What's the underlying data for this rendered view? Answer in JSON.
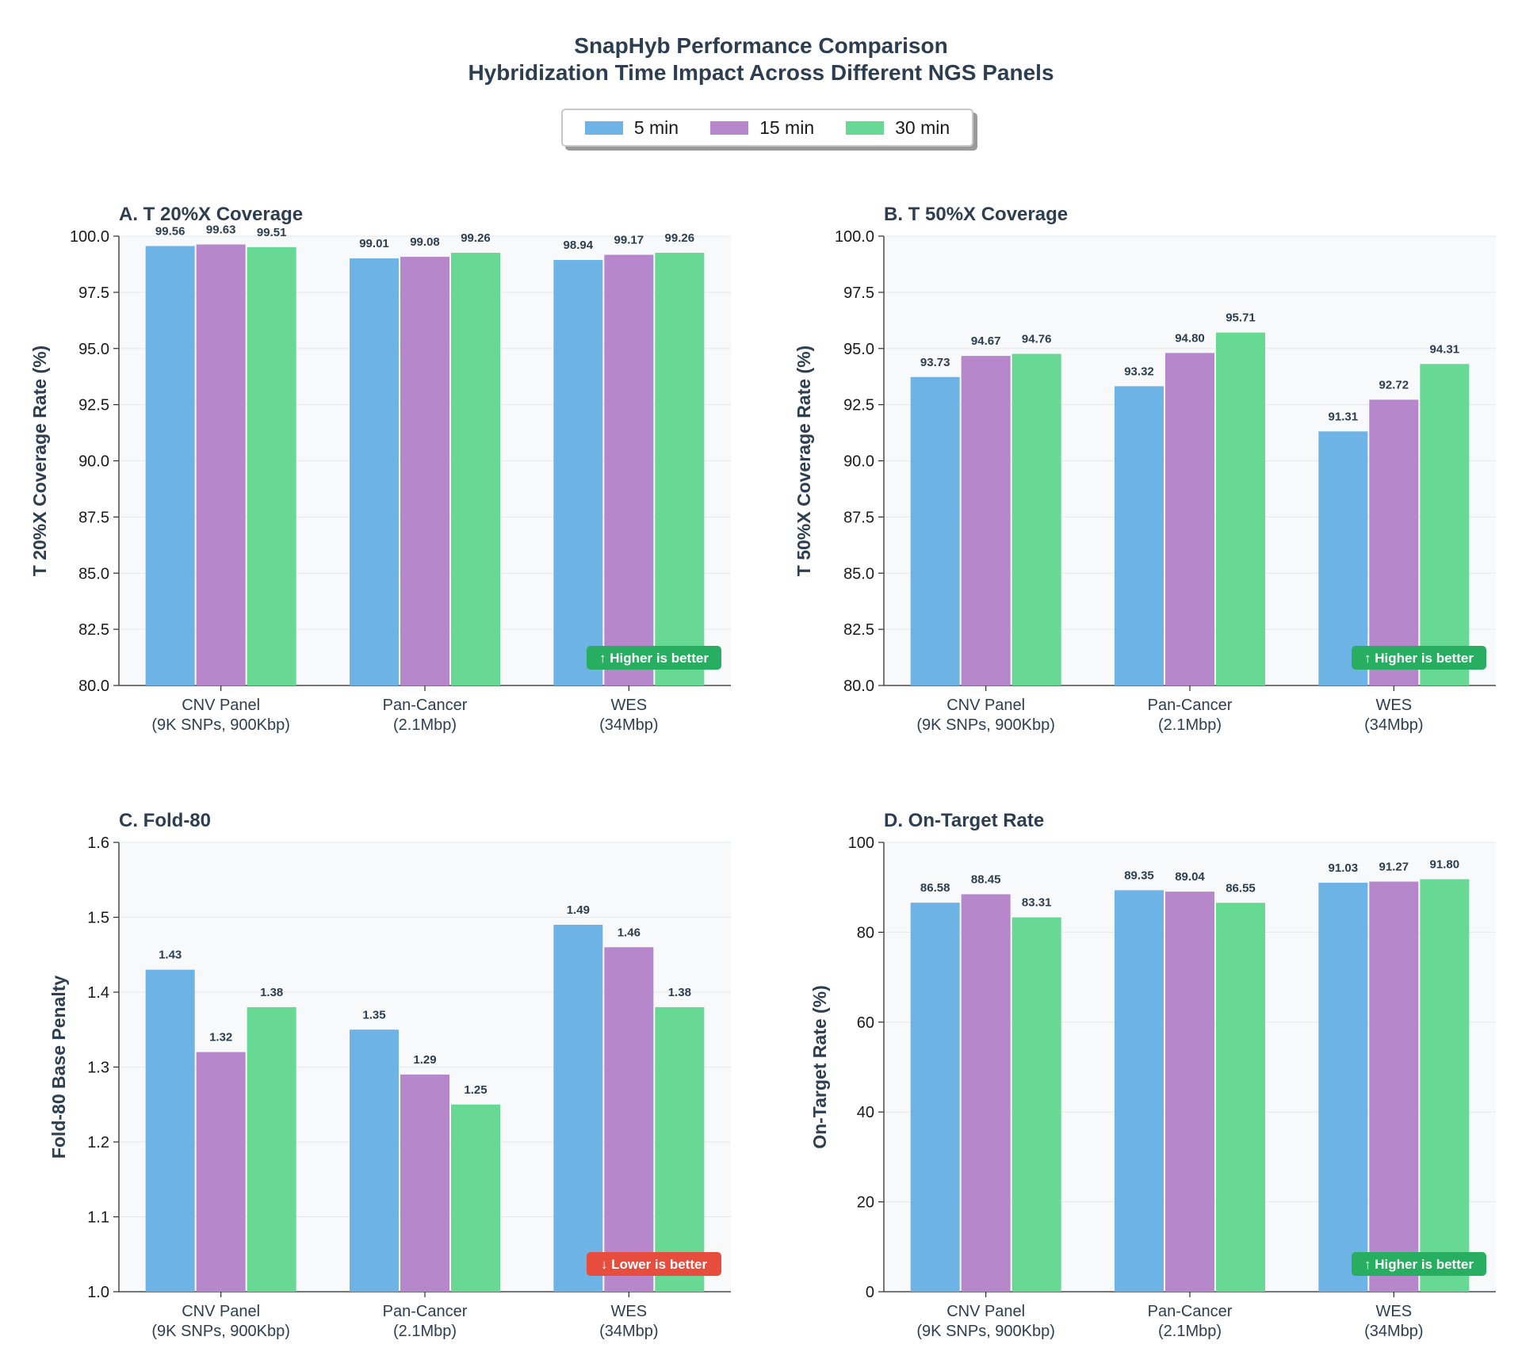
{
  "figure": {
    "title_line1": "SnapHyb Performance Comparison",
    "title_line2": "Hybridization Time Impact Across Different NGS Panels",
    "legend": [
      {
        "label": "5 min",
        "color": "#6db3e6"
      },
      {
        "label": "15 min",
        "color": "#b687cb"
      },
      {
        "label": "30 min",
        "color": "#68d895"
      }
    ],
    "colors": {
      "text": "#2c3e50",
      "better_good": "#27ae60",
      "better_bad": "#e74c3c",
      "panel_bg": "#f8f9fa",
      "grid": "#e6e8ea"
    }
  },
  "chart_data": [
    {
      "type": "bar",
      "title": "A. T 20%X Coverage",
      "ylabel": "T 20%X Coverage Rate (%)",
      "ylim": [
        80,
        100
      ],
      "yticks": [
        "80.0",
        "82.5",
        "85.0",
        "87.5",
        "90.0",
        "92.5",
        "95.0",
        "97.5",
        "100.0"
      ],
      "ytick_values": [
        80,
        82.5,
        85,
        87.5,
        90,
        92.5,
        95,
        97.5,
        100
      ],
      "categories": [
        [
          "CNV Panel",
          "(9K SNPs, 900Kbp)"
        ],
        [
          "Pan-Cancer",
          "(2.1Mbp)"
        ],
        [
          "WES",
          "(34Mbp)"
        ]
      ],
      "series": [
        {
          "name": "5 min",
          "values": [
            99.56,
            99.01,
            98.94
          ],
          "labels": [
            "99.56",
            "99.01",
            "98.94"
          ]
        },
        {
          "name": "15 min",
          "values": [
            99.63,
            99.08,
            99.17
          ],
          "labels": [
            "99.63",
            "99.08",
            "99.17"
          ]
        },
        {
          "name": "30 min",
          "values": [
            99.51,
            99.26,
            99.26
          ],
          "labels": [
            "99.51",
            "99.26",
            "99.26"
          ]
        }
      ],
      "badge": "↑ Higher is better",
      "badge_kind": "good"
    },
    {
      "type": "bar",
      "title": "B. T 50%X Coverage",
      "ylabel": "T 50%X Coverage Rate (%)",
      "ylim": [
        80,
        100
      ],
      "yticks": [
        "80.0",
        "82.5",
        "85.0",
        "87.5",
        "90.0",
        "92.5",
        "95.0",
        "97.5",
        "100.0"
      ],
      "ytick_values": [
        80,
        82.5,
        85,
        87.5,
        90,
        92.5,
        95,
        97.5,
        100
      ],
      "categories": [
        [
          "CNV Panel",
          "(9K SNPs, 900Kbp)"
        ],
        [
          "Pan-Cancer",
          "(2.1Mbp)"
        ],
        [
          "WES",
          "(34Mbp)"
        ]
      ],
      "series": [
        {
          "name": "5 min",
          "values": [
            93.73,
            93.32,
            91.31
          ],
          "labels": [
            "93.73",
            "93.32",
            "91.31"
          ]
        },
        {
          "name": "15 min",
          "values": [
            94.67,
            94.8,
            92.72
          ],
          "labels": [
            "94.67",
            "94.80",
            "92.72"
          ]
        },
        {
          "name": "30 min",
          "values": [
            94.76,
            95.71,
            94.31
          ],
          "labels": [
            "94.76",
            "95.71",
            "94.31"
          ]
        }
      ],
      "badge": "↑ Higher is better",
      "badge_kind": "good"
    },
    {
      "type": "bar",
      "title": "C. Fold-80",
      "ylabel": "Fold-80 Base Penalty",
      "ylim": [
        1.0,
        1.6
      ],
      "yticks": [
        "1.0",
        "1.1",
        "1.2",
        "1.3",
        "1.4",
        "1.5",
        "1.6"
      ],
      "ytick_values": [
        1.0,
        1.1,
        1.2,
        1.3,
        1.4,
        1.5,
        1.6
      ],
      "categories": [
        [
          "CNV Panel",
          "(9K SNPs, 900Kbp)"
        ],
        [
          "Pan-Cancer",
          "(2.1Mbp)"
        ],
        [
          "WES",
          "(34Mbp)"
        ]
      ],
      "series": [
        {
          "name": "5 min",
          "values": [
            1.43,
            1.35,
            1.49
          ],
          "labels": [
            "1.43",
            "1.35",
            "1.49"
          ]
        },
        {
          "name": "15 min",
          "values": [
            1.32,
            1.29,
            1.46
          ],
          "labels": [
            "1.32",
            "1.29",
            "1.46"
          ]
        },
        {
          "name": "30 min",
          "values": [
            1.38,
            1.25,
            1.38
          ],
          "labels": [
            "1.38",
            "1.25",
            "1.38"
          ]
        }
      ],
      "badge": "↓ Lower is better",
      "badge_kind": "bad"
    },
    {
      "type": "bar",
      "title": "D. On-Target Rate",
      "ylabel": "On-Target Rate (%)",
      "ylim": [
        0,
        100
      ],
      "yticks": [
        "0",
        "20",
        "40",
        "60",
        "80",
        "100"
      ],
      "ytick_values": [
        0,
        20,
        40,
        60,
        80,
        100
      ],
      "categories": [
        [
          "CNV Panel",
          "(9K SNPs, 900Kbp)"
        ],
        [
          "Pan-Cancer",
          "(2.1Mbp)"
        ],
        [
          "WES",
          "(34Mbp)"
        ]
      ],
      "series": [
        {
          "name": "5 min",
          "values": [
            86.58,
            89.35,
            91.03
          ],
          "labels": [
            "86.58",
            "89.35",
            "91.03"
          ]
        },
        {
          "name": "15 min",
          "values": [
            88.45,
            89.04,
            91.27
          ],
          "labels": [
            "88.45",
            "89.04",
            "91.27"
          ]
        },
        {
          "name": "30 min",
          "values": [
            83.31,
            86.55,
            91.8
          ],
          "labels": [
            "83.31",
            "86.55",
            "91.80"
          ]
        }
      ],
      "badge": "↑ Higher is better",
      "badge_kind": "good"
    }
  ]
}
